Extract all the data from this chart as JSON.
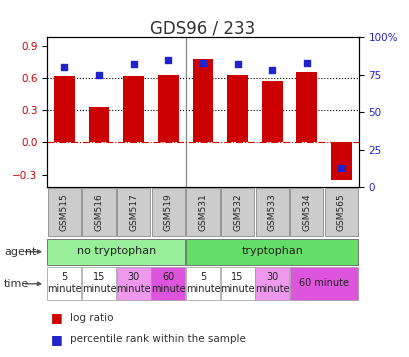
{
  "title": "GDS96 / 233",
  "samples": [
    "GSM515",
    "GSM516",
    "GSM517",
    "GSM519",
    "GSM531",
    "GSM532",
    "GSM533",
    "GSM534",
    "GSM565"
  ],
  "log_ratios": [
    0.62,
    0.33,
    0.62,
    0.63,
    0.78,
    0.63,
    0.57,
    0.66,
    -0.35
  ],
  "percentile_ranks": [
    80,
    75,
    82,
    85,
    83,
    82,
    78,
    83,
    13
  ],
  "bar_color": "#cc0000",
  "dot_color": "#2222cc",
  "ylim_left": [
    -0.42,
    0.98
  ],
  "ylim_right": [
    0,
    100
  ],
  "yticks_left": [
    -0.3,
    0.0,
    0.3,
    0.6,
    0.9
  ],
  "yticks_right": [
    0,
    25,
    50,
    75,
    100
  ],
  "hlines": [
    0.0,
    0.3,
    0.6
  ],
  "hline_styles": [
    "dashdot",
    "dotted",
    "dotted"
  ],
  "hline_colors": [
    "#cc0000",
    "#000000",
    "#000000"
  ],
  "agent_no_tryp_color": "#99ee99",
  "agent_tryp_color": "#66dd66",
  "time_white_color": "#ffffff",
  "time_light_pink_color": "#ee99ee",
  "time_pink_color": "#dd55dd",
  "bg_color": "#ffffff",
  "left_ytick_color": "#cc0000",
  "right_ytick_color": "#2222cc",
  "title_fontsize": 12,
  "tick_fontsize": 7.5,
  "sample_fontsize": 6.5,
  "ann_fontsize": 8,
  "time_fontsize": 7
}
